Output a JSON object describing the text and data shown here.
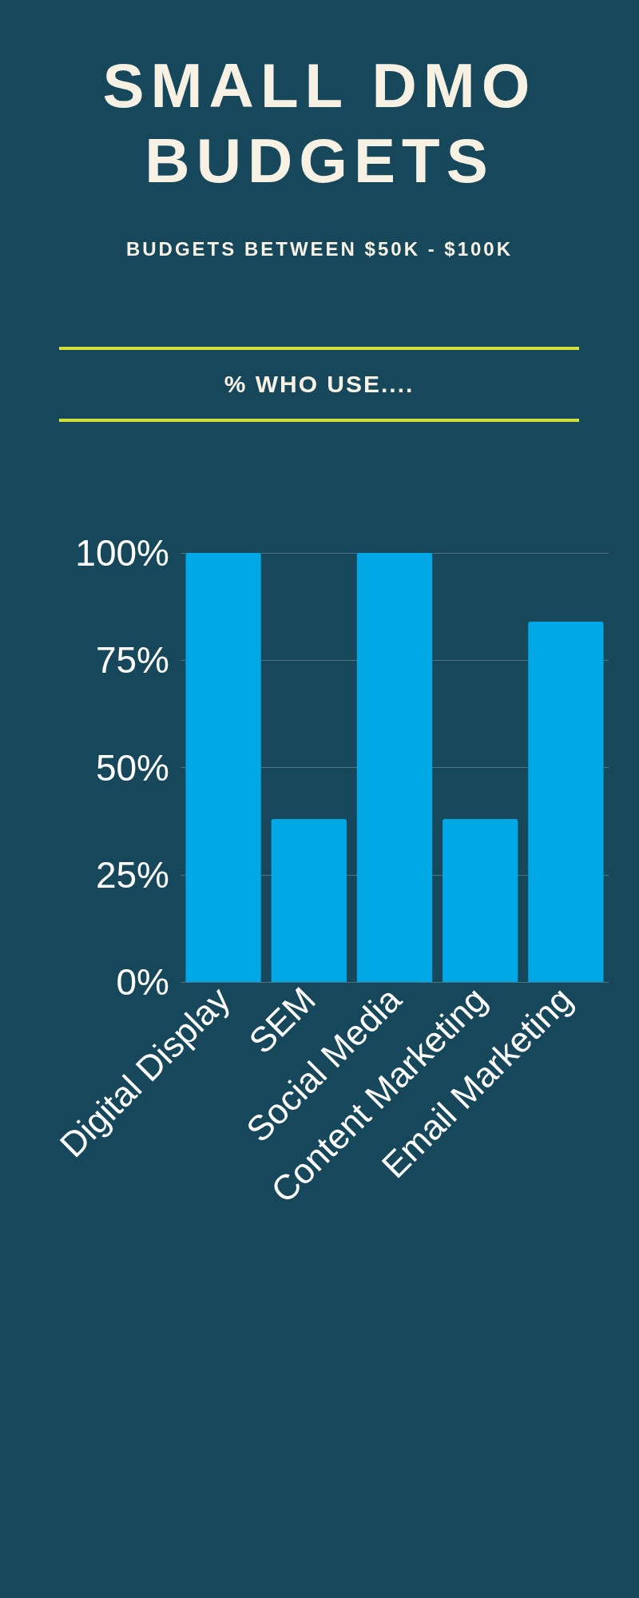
{
  "chart_data": {
    "type": "bar",
    "title": "SMALL DMO BUDGETS",
    "subtitle": "BUDGETS BETWEEN $50K - $100K",
    "annotations": [
      "% WHO USE...."
    ],
    "categories": [
      "Digital Display",
      "SEM",
      "Social Media",
      "Content Marketing",
      "Email Marketing"
    ],
    "values": [
      100,
      38,
      100,
      38,
      84
    ],
    "color": "#00a8e6",
    "ylim": [
      0,
      100
    ],
    "yticks": [
      {
        "value": 0,
        "label": "0%"
      },
      {
        "value": 25,
        "label": "25%"
      },
      {
        "value": 50,
        "label": "50%"
      },
      {
        "value": 75,
        "label": "75%"
      },
      {
        "value": 100,
        "label": "100%"
      }
    ],
    "grid": "y"
  }
}
